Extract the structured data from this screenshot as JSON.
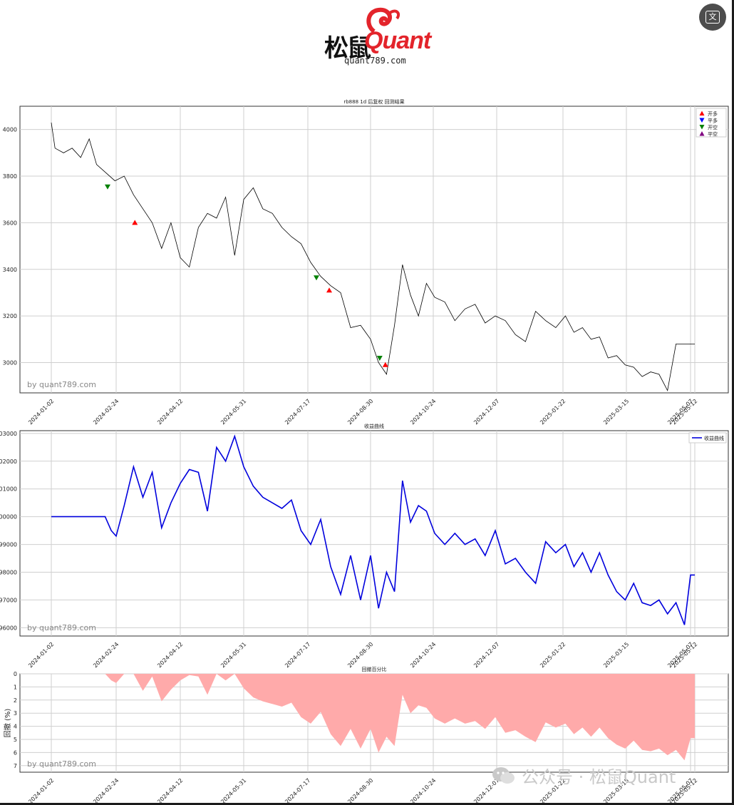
{
  "logo": {
    "cn": "松鼠",
    "en": "Quant",
    "url": "quant789.com"
  },
  "watermark_text": "公众号 · 松鼠Quant",
  "plot_watermark": "by quant789.com",
  "x_dates": [
    "2024-01-02",
    "2024-02-24",
    "2024-04-12",
    "2024-05-31",
    "2024-07-17",
    "2024-08-30",
    "2024-10-24",
    "2024-12-07",
    "2025-01-22",
    "2025-03-15",
    "2025-05-07",
    "2025-05-12"
  ],
  "chart_data": [
    {
      "type": "line",
      "title": "rb888 1d 后复权 回测结果",
      "ylim": [
        2870,
        4100
      ],
      "yticks": [
        3000,
        3200,
        3400,
        3600,
        3800,
        4000
      ],
      "grid": true,
      "legend_position": "top-right",
      "series": [
        {
          "name": "",
          "color": "#000000",
          "x": [
            "2024-01-02",
            "2024-01-05",
            "2024-01-12",
            "2024-01-19",
            "2024-01-26",
            "2024-02-02",
            "2024-02-08",
            "2024-02-23",
            "2024-03-01",
            "2024-03-08",
            "2024-03-15",
            "2024-03-22",
            "2024-03-29",
            "2024-04-05",
            "2024-04-12",
            "2024-04-19",
            "2024-04-26",
            "2024-05-03",
            "2024-05-10",
            "2024-05-17",
            "2024-05-24",
            "2024-05-31",
            "2024-06-07",
            "2024-06-14",
            "2024-06-21",
            "2024-06-28",
            "2024-07-05",
            "2024-07-12",
            "2024-07-19",
            "2024-07-26",
            "2024-08-02",
            "2024-08-09",
            "2024-08-16",
            "2024-08-23",
            "2024-08-30",
            "2024-09-06",
            "2024-09-13",
            "2024-09-20",
            "2024-09-27",
            "2024-10-04",
            "2024-10-11",
            "2024-10-18",
            "2024-10-25",
            "2024-11-01",
            "2024-11-08",
            "2024-11-15",
            "2024-11-22",
            "2024-11-29",
            "2024-12-06",
            "2024-12-13",
            "2024-12-20",
            "2024-12-27",
            "2025-01-03",
            "2025-01-10",
            "2025-01-17",
            "2025-01-24",
            "2025-01-31",
            "2025-02-07",
            "2025-02-14",
            "2025-02-21",
            "2025-02-28",
            "2025-03-07",
            "2025-03-14",
            "2025-03-21",
            "2025-03-28",
            "2025-04-04",
            "2025-04-11",
            "2025-04-18",
            "2025-04-25",
            "2025-05-02",
            "2025-05-07",
            "2025-05-09",
            "2025-05-12"
          ],
          "y": [
            4030,
            3920,
            3900,
            3920,
            3880,
            3960,
            3850,
            3780,
            3800,
            3720,
            3660,
            3600,
            3490,
            3600,
            3450,
            3410,
            3580,
            3640,
            3620,
            3710,
            3460,
            3700,
            3750,
            3660,
            3640,
            3580,
            3540,
            3510,
            3430,
            3370,
            3330,
            3300,
            3150,
            3160,
            3100,
            3000,
            2950,
            3160,
            3420,
            3290,
            3200,
            3340,
            3280,
            3260,
            3180,
            3230,
            3250,
            3170,
            3200,
            3180,
            3120,
            3090,
            3220,
            3180,
            3150,
            3200,
            3130,
            3150,
            3100,
            3110,
            3020,
            3030,
            2990,
            2980,
            2940,
            2960,
            2950,
            2880,
            3080,
            3080,
            3080,
            3080,
            3080
          ]
        }
      ],
      "markers": [
        {
          "label": "开多",
          "date": "2024-03-09",
          "value": 3600,
          "color": "#ff0000",
          "shape": "up"
        },
        {
          "label": "开空",
          "date": "2024-02-17",
          "value": 3755,
          "color": "#008000",
          "shape": "down"
        },
        {
          "label": "开空",
          "date": "2024-07-23",
          "value": 3365,
          "color": "#008000",
          "shape": "down"
        },
        {
          "label": "开多",
          "date": "2024-08-01",
          "value": 3310,
          "color": "#ff0000",
          "shape": "up"
        },
        {
          "label": "开空",
          "date": "2024-09-07",
          "value": 3020,
          "color": "#008000",
          "shape": "down"
        },
        {
          "label": "开多",
          "date": "2024-09-12",
          "value": 2990,
          "color": "#ff0000",
          "shape": "up"
        }
      ],
      "legend": [
        {
          "label": "开多",
          "color": "#ff0000",
          "shape": "up"
        },
        {
          "label": "平多",
          "color": "#0000ff",
          "shape": "down"
        },
        {
          "label": "开空",
          "color": "#008000",
          "shape": "down"
        },
        {
          "label": "平空",
          "color": "#800080",
          "shape": "up"
        }
      ]
    },
    {
      "type": "line",
      "title": "收益曲线",
      "ylim": [
        95700,
        103100
      ],
      "yticks": [
        96000,
        97000,
        98000,
        99000,
        100000,
        101000,
        102000,
        103000
      ],
      "grid": true,
      "legend_position": "top-right",
      "series": [
        {
          "name": "收益曲线",
          "color": "#0000dd",
          "x": [
            "2024-01-02",
            "2024-02-15",
            "2024-02-20",
            "2024-02-24",
            "2024-03-01",
            "2024-03-08",
            "2024-03-15",
            "2024-03-22",
            "2024-03-29",
            "2024-04-05",
            "2024-04-12",
            "2024-04-19",
            "2024-04-26",
            "2024-05-03",
            "2024-05-10",
            "2024-05-17",
            "2024-05-24",
            "2024-05-31",
            "2024-06-07",
            "2024-06-14",
            "2024-06-21",
            "2024-06-28",
            "2024-07-05",
            "2024-07-12",
            "2024-07-19",
            "2024-07-26",
            "2024-08-02",
            "2024-08-09",
            "2024-08-16",
            "2024-08-23",
            "2024-08-30",
            "2024-09-06",
            "2024-09-13",
            "2024-09-20",
            "2024-09-27",
            "2024-10-04",
            "2024-10-11",
            "2024-10-18",
            "2024-10-25",
            "2024-11-01",
            "2024-11-08",
            "2024-11-15",
            "2024-11-22",
            "2024-11-29",
            "2024-12-06",
            "2024-12-13",
            "2024-12-20",
            "2024-12-27",
            "2025-01-03",
            "2025-01-10",
            "2025-01-17",
            "2025-01-24",
            "2025-01-31",
            "2025-02-07",
            "2025-02-14",
            "2025-02-21",
            "2025-02-28",
            "2025-03-07",
            "2025-03-14",
            "2025-03-21",
            "2025-03-28",
            "2025-04-04",
            "2025-04-11",
            "2025-04-18",
            "2025-04-25",
            "2025-05-02",
            "2025-05-07",
            "2025-05-09",
            "2025-05-12"
          ],
          "y": [
            100000,
            100000,
            99500,
            99300,
            100400,
            101800,
            100700,
            101600,
            99600,
            100500,
            101200,
            101700,
            101600,
            100200,
            102500,
            102000,
            102900,
            101800,
            101100,
            100700,
            100500,
            100300,
            100600,
            99500,
            99000,
            99900,
            98200,
            97200,
            98600,
            97000,
            98600,
            96700,
            98000,
            97300,
            101300,
            99800,
            100400,
            100200,
            99400,
            99000,
            99400,
            99000,
            99200,
            98600,
            99500,
            98300,
            98500,
            98000,
            97600,
            99100,
            98700,
            99000,
            98200,
            98700,
            98000,
            98700,
            97900,
            97300,
            97000,
            97600,
            96900,
            96800,
            97000,
            96500,
            96900,
            96100,
            97900,
            97900,
            97900
          ]
        }
      ]
    },
    {
      "type": "area",
      "title": "回撤百分比",
      "ylabel": "回撤 (%)",
      "ylim": [
        0,
        7.5
      ],
      "yticks": [
        0,
        1,
        2,
        3,
        4,
        5,
        6,
        7
      ],
      "inverted_y": true,
      "grid": true,
      "series": [
        {
          "name": "",
          "color": "#ffaaaa",
          "x": [
            "2024-01-02",
            "2024-02-15",
            "2024-02-20",
            "2024-02-24",
            "2024-03-01",
            "2024-03-08",
            "2024-03-15",
            "2024-03-22",
            "2024-03-29",
            "2024-04-05",
            "2024-04-12",
            "2024-04-19",
            "2024-04-26",
            "2024-05-03",
            "2024-05-10",
            "2024-05-17",
            "2024-05-24",
            "2024-05-31",
            "2024-06-07",
            "2024-06-14",
            "2024-06-21",
            "2024-06-28",
            "2024-07-05",
            "2024-07-12",
            "2024-07-19",
            "2024-07-26",
            "2024-08-02",
            "2024-08-09",
            "2024-08-16",
            "2024-08-23",
            "2024-08-30",
            "2024-09-06",
            "2024-09-13",
            "2024-09-20",
            "2024-09-27",
            "2024-10-04",
            "2024-10-11",
            "2024-10-18",
            "2024-10-25",
            "2024-11-01",
            "2024-11-08",
            "2024-11-15",
            "2024-11-22",
            "2024-11-29",
            "2024-12-06",
            "2024-12-13",
            "2024-12-20",
            "2024-12-27",
            "2025-01-03",
            "2025-01-10",
            "2025-01-17",
            "2025-01-24",
            "2025-01-31",
            "2025-02-07",
            "2025-02-14",
            "2025-02-21",
            "2025-02-28",
            "2025-03-07",
            "2025-03-14",
            "2025-03-21",
            "2025-03-28",
            "2025-04-04",
            "2025-04-11",
            "2025-04-18",
            "2025-04-25",
            "2025-05-02",
            "2025-05-07",
            "2025-05-09",
            "2025-05-12"
          ],
          "y": [
            0,
            0,
            0.5,
            0.7,
            0,
            0,
            1.3,
            0.2,
            2.1,
            1.2,
            0.5,
            0.1,
            0.2,
            1.6,
            0,
            0.5,
            0,
            1.1,
            1.8,
            2.1,
            2.3,
            2.5,
            2.2,
            3.3,
            3.8,
            2.9,
            4.6,
            5.5,
            4.2,
            5.7,
            4.2,
            6.0,
            4.8,
            5.5,
            1.6,
            3.0,
            2.4,
            2.6,
            3.4,
            3.8,
            3.4,
            3.8,
            3.6,
            4.2,
            3.3,
            4.5,
            4.3,
            4.8,
            5.2,
            3.7,
            4.1,
            3.8,
            4.6,
            4.1,
            4.8,
            4.1,
            4.9,
            5.4,
            5.7,
            5.1,
            5.8,
            5.9,
            5.7,
            6.2,
            5.8,
            6.6,
            4.9,
            4.9,
            4.9
          ]
        }
      ]
    }
  ]
}
